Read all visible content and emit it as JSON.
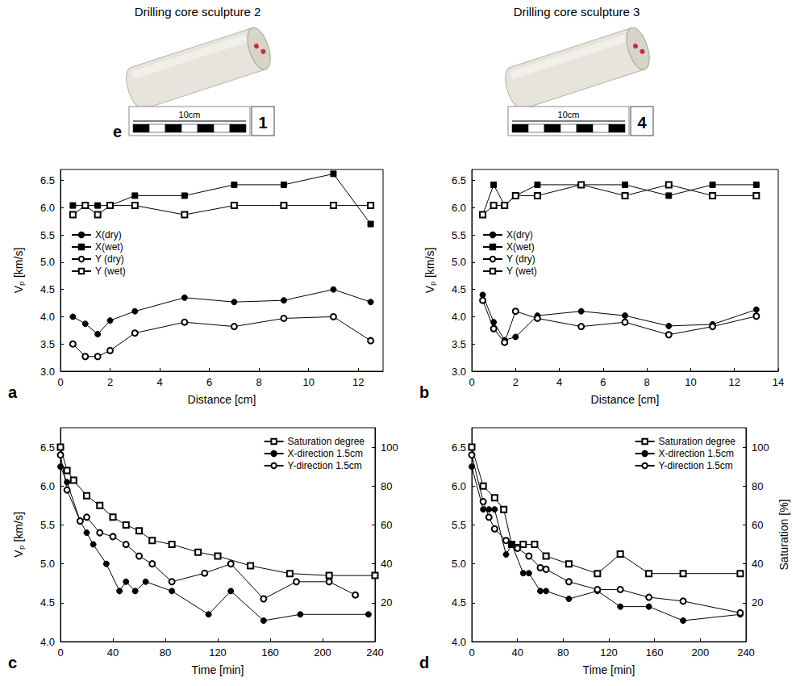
{
  "chart_data": [
    {
      "type": "line",
      "panel": "a",
      "xlabel": "Distance [cm]",
      "ylabel": "Vₚ [km/s]",
      "xlim": [
        0,
        13
      ],
      "xticks": [
        0,
        2,
        4,
        6,
        8,
        10,
        12
      ],
      "ylim": [
        3.0,
        6.7
      ],
      "yticks": [
        {
          "value": 3,
          "label": "3.0"
        },
        3.5,
        {
          "value": 4,
          "label": "4.0"
        },
        4.5,
        {
          "value": 5,
          "label": "5.0"
        },
        5.5,
        {
          "value": 6,
          "label": "6.0"
        },
        6.5
      ],
      "grid": false,
      "legend": "left",
      "series": [
        {
          "name": "X(dry)",
          "color": "#000000",
          "marker": "circle",
          "x": [
            0.5,
            1,
            1.5,
            2,
            3,
            5,
            7,
            9,
            11,
            12.5
          ],
          "values": [
            4.0,
            3.87,
            3.68,
            3.93,
            4.1,
            4.35,
            4.27,
            4.3,
            4.5,
            4.27
          ]
        },
        {
          "name": "X(wet)",
          "color": "#000000",
          "marker": "square",
          "x": [
            0.5,
            1,
            1.5,
            2,
            3,
            5,
            7,
            9,
            11,
            12.5
          ],
          "values": [
            6.04,
            6.04,
            6.04,
            6.04,
            6.22,
            6.22,
            6.42,
            6.42,
            6.62,
            5.7
          ]
        },
        {
          "name": "Y (dry)",
          "color": "#000000",
          "marker": "open_circle",
          "x": [
            0.5,
            1,
            1.5,
            2,
            3,
            5,
            7,
            9,
            11,
            12.5
          ],
          "values": [
            3.5,
            3.27,
            3.27,
            3.38,
            3.7,
            3.9,
            3.82,
            3.97,
            4.0,
            3.56
          ]
        },
        {
          "name": "Y (wet)",
          "color": "#000000",
          "marker": "open_square",
          "x": [
            0.5,
            1,
            1.5,
            2,
            3,
            5,
            7,
            9,
            11,
            12.5
          ],
          "values": [
            5.87,
            6.04,
            5.87,
            6.04,
            6.04,
            5.87,
            6.04,
            6.04,
            6.04,
            6.04
          ]
        }
      ]
    },
    {
      "type": "line",
      "panel": "b",
      "xlabel": "Distance [cm]",
      "ylabel": "Vₚ [km/s]",
      "xlim": [
        0,
        14
      ],
      "xticks": [
        0,
        2,
        4,
        6,
        8,
        10,
        12,
        14
      ],
      "ylim": [
        3.0,
        6.7
      ],
      "yticks": [
        {
          "value": 3,
          "label": "3.0"
        },
        3.5,
        {
          "value": 4,
          "label": "4.0"
        },
        4.5,
        {
          "value": 5,
          "label": "5.0"
        },
        5.5,
        {
          "value": 6,
          "label": "6.0"
        },
        6.5
      ],
      "grid": false,
      "legend": "left",
      "series": [
        {
          "name": "X(dry)",
          "color": "#000000",
          "marker": "circle",
          "x": [
            0.5,
            1,
            1.5,
            2,
            3,
            5,
            7,
            9,
            11,
            13
          ],
          "values": [
            4.4,
            3.9,
            3.57,
            3.63,
            4.02,
            4.1,
            4.02,
            3.83,
            3.86,
            4.13
          ]
        },
        {
          "name": "X(wet)",
          "color": "#000000",
          "marker": "square",
          "x": [
            0.5,
            1,
            1.5,
            2,
            3,
            5,
            7,
            9,
            11,
            13
          ],
          "values": [
            5.87,
            6.42,
            6.04,
            6.22,
            6.42,
            6.42,
            6.42,
            6.22,
            6.42,
            6.42
          ]
        },
        {
          "name": "Y (dry)",
          "color": "#000000",
          "marker": "open_circle",
          "x": [
            0.5,
            1,
            1.5,
            2,
            3,
            5,
            7,
            9,
            11,
            13
          ],
          "values": [
            4.3,
            3.78,
            3.53,
            4.1,
            3.97,
            3.82,
            3.9,
            3.67,
            3.82,
            4.01
          ]
        },
        {
          "name": "Y (wet)",
          "color": "#000000",
          "marker": "open_square",
          "x": [
            0.5,
            1,
            1.5,
            2,
            3,
            5,
            7,
            9,
            11,
            13
          ],
          "values": [
            5.87,
            6.04,
            6.04,
            6.22,
            6.22,
            6.42,
            6.22,
            6.42,
            6.22,
            6.22
          ]
        }
      ]
    },
    {
      "type": "line",
      "panel": "c",
      "xlabel": "Time [min]",
      "ylabel": "Vₚ [km/s]",
      "xlim": [
        0,
        240
      ],
      "xticks": [
        0,
        40,
        80,
        120,
        160,
        200,
        240
      ],
      "ylim": [
        4.0,
        6.75
      ],
      "yticks": [
        {
          "value": 4,
          "label": "4.0"
        },
        4.5,
        {
          "value": 5,
          "label": "5.0"
        },
        5.5,
        {
          "value": 6,
          "label": "6.0"
        },
        6.5
      ],
      "y2lim": [
        0,
        110
      ],
      "y2ticks": [
        20,
        40,
        60,
        80,
        100
      ],
      "grid": false,
      "legend": "upper right",
      "series": [
        {
          "name": "Saturation degree",
          "color": "#000000",
          "marker": "open_square",
          "axis": "y2",
          "x": [
            0,
            5,
            10,
            20,
            30,
            40,
            50,
            60,
            70,
            85,
            105,
            120,
            145,
            175,
            205,
            240
          ],
          "values": [
            100,
            88,
            83,
            75,
            70,
            64,
            60,
            57,
            52,
            50,
            46,
            44,
            39,
            35,
            34,
            34
          ]
        },
        {
          "name": "X-direction 1.5cm",
          "color": "#000000",
          "marker": "circle",
          "x": [
            0,
            5,
            15,
            20,
            25,
            35,
            45,
            50,
            57,
            65,
            85,
            113,
            130,
            155,
            183,
            235
          ],
          "values": [
            6.25,
            6.05,
            5.55,
            5.4,
            5.25,
            5.0,
            4.65,
            4.77,
            4.65,
            4.77,
            4.65,
            4.35,
            4.65,
            4.27,
            4.35,
            4.35
          ]
        },
        {
          "name": "Y-direction 1.5cm",
          "color": "#000000",
          "marker": "open_circle",
          "x": [
            0,
            5,
            15,
            20,
            30,
            40,
            50,
            60,
            70,
            85,
            110,
            130,
            155,
            180,
            205,
            225
          ],
          "values": [
            6.4,
            5.95,
            5.55,
            5.6,
            5.4,
            5.35,
            5.25,
            5.1,
            5.0,
            4.77,
            4.88,
            5.0,
            4.55,
            4.77,
            4.77,
            4.6
          ]
        }
      ]
    },
    {
      "type": "line",
      "panel": "d",
      "xlabel": "Time [min]",
      "y2label": "Saturation [%]",
      "xlim": [
        0,
        240
      ],
      "xticks": [
        0,
        40,
        80,
        120,
        160,
        200,
        240
      ],
      "ylim": [
        4.0,
        6.75
      ],
      "yticks": [
        {
          "value": 4,
          "label": "4.0"
        },
        4.5,
        {
          "value": 5,
          "label": "5.0"
        },
        5.5,
        {
          "value": 6,
          "label": "6.0"
        },
        6.5
      ],
      "y2lim": [
        0,
        110
      ],
      "y2ticks": [
        20,
        40,
        60,
        80,
        100
      ],
      "grid": false,
      "legend": "upper right",
      "series": [
        {
          "name": "Saturation degree",
          "color": "#000000",
          "marker": "open_square",
          "axis": "y2",
          "x": [
            0,
            10,
            20,
            28,
            35,
            45,
            55,
            65,
            85,
            110,
            130,
            155,
            185,
            235
          ],
          "values": [
            100,
            80,
            74,
            68,
            50,
            50,
            50,
            44,
            40,
            35,
            45,
            35,
            35,
            35
          ]
        },
        {
          "name": "X-direction 1.5cm",
          "color": "#000000",
          "marker": "circle",
          "x": [
            0,
            10,
            15,
            20,
            30,
            35,
            45,
            50,
            60,
            65,
            85,
            110,
            130,
            155,
            185,
            235
          ],
          "values": [
            6.25,
            5.7,
            5.7,
            5.7,
            5.12,
            5.25,
            4.88,
            4.88,
            4.65,
            4.65,
            4.55,
            4.65,
            4.45,
            4.45,
            4.27,
            4.35
          ]
        },
        {
          "name": "Y-direction 1.5cm",
          "color": "#000000",
          "marker": "open_circle",
          "x": [
            0,
            10,
            15,
            20,
            30,
            40,
            50,
            60,
            65,
            85,
            110,
            130,
            155,
            185,
            235
          ],
          "values": [
            6.4,
            5.8,
            5.6,
            5.45,
            5.3,
            5.2,
            5.1,
            4.95,
            4.93,
            4.77,
            4.67,
            4.67,
            4.57,
            4.52,
            4.37
          ]
        }
      ]
    }
  ],
  "photos": {
    "panel": "e",
    "cores": [
      {
        "title": "Drilling core sculpture 2",
        "scale_label": "10cm",
        "tag": "1"
      },
      {
        "title": "Drilling core sculpture 3",
        "scale_label": "10cm",
        "tag": "4"
      }
    ]
  }
}
